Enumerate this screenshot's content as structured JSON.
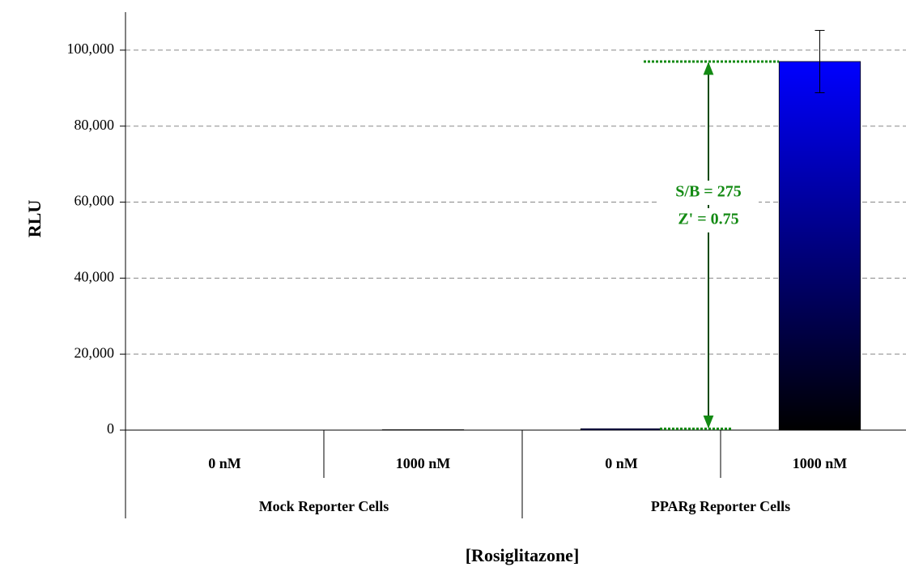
{
  "chart_data": {
    "type": "bar",
    "ylabel": "RLU",
    "xlabel": "[Rosiglitazone]",
    "categories": [
      "0 nM",
      "1000 nM",
      "0 nM",
      "1000 nM"
    ],
    "groups": [
      "Mock Reporter Cells",
      "PPARg Reporter Cells"
    ],
    "values": [
      0,
      100,
      353,
      97000
    ],
    "errors": [
      null,
      null,
      null,
      8200
    ],
    "color": "#0000ff",
    "annotation_color": "#138a13",
    "annotations": [
      "S/B = 275",
      "Z' = 0.75"
    ],
    "ylim": [
      0,
      110000
    ],
    "yticks": [
      0,
      {
        "value": 20000,
        "label": "20,000"
      },
      {
        "value": 40000,
        "label": "40,000"
      },
      {
        "value": 60000,
        "label": "60,000"
      },
      {
        "value": 80000,
        "label": "80,000"
      },
      {
        "value": 100000,
        "label": "100,000"
      }
    ],
    "grid": true
  }
}
